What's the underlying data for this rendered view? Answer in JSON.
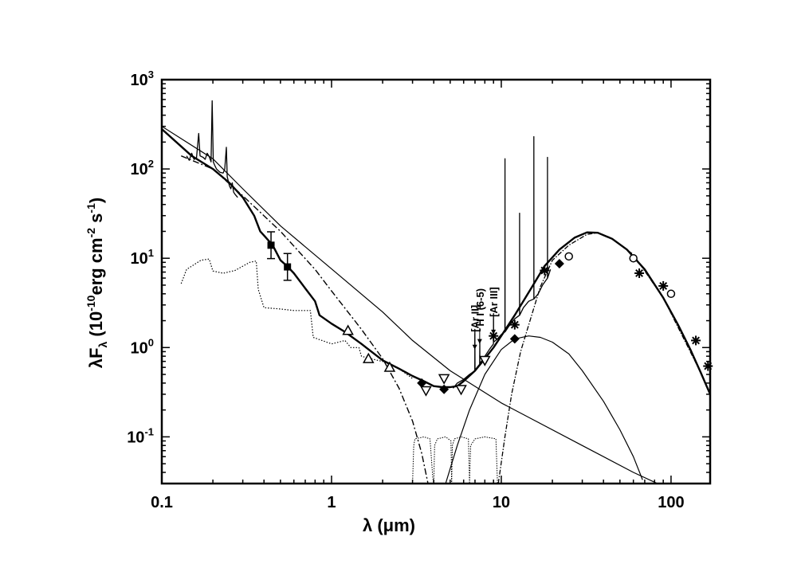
{
  "chart_data": {
    "type": "scatter",
    "xscale": "log",
    "yscale": "log",
    "xlim": [
      0.1,
      170
    ],
    "ylim": [
      0.03,
      1000
    ],
    "x_tick_labels": [
      "0.1",
      "1",
      "10",
      "100"
    ],
    "x_tick_values": [
      0.1,
      1,
      10,
      100
    ],
    "y_tick_values": [
      0.1,
      1,
      10,
      100,
      1000
    ],
    "y_tick_labels": [
      {
        "base": "10",
        "exp": "-1"
      },
      {
        "base": "10",
        "exp": "0"
      },
      {
        "base": "10",
        "exp": "1"
      },
      {
        "base": "10",
        "exp": "2"
      },
      {
        "base": "10",
        "exp": "3"
      }
    ],
    "xlabel": {
      "main": "λ (",
      "mu": "μ",
      "unit": "m)"
    },
    "ylabel": {
      "a": "λF",
      "b": "λ",
      "c": " (10",
      "d": "-10",
      "e": "erg cm",
      "f": "-2",
      "g": " s",
      "h": "-1",
      "i": ")"
    },
    "annotations": [
      {
        "text": "[Ar II]",
        "x": 6.98,
        "y_arrow": 0.95
      },
      {
        "text": "H I (6-5)",
        "x": 7.46,
        "y_arrow": 1.1
      },
      {
        "text": "[Ar III]",
        "x": 8.99,
        "y_arrow": 1.4
      }
    ],
    "series": [
      {
        "name": "squares",
        "marker": "square-filled",
        "points": [
          [
            0.44,
            14
          ],
          [
            0.55,
            8
          ]
        ],
        "yerr": [
          0.15,
          0.15
        ]
      },
      {
        "name": "triangles-up",
        "marker": "triangle-up-open",
        "points": [
          [
            1.25,
            1.55
          ],
          [
            1.65,
            0.75
          ],
          [
            2.2,
            0.6
          ]
        ]
      },
      {
        "name": "triangles-down",
        "marker": "triangle-down-open",
        "points": [
          [
            3.6,
            0.33
          ],
          [
            4.6,
            0.45
          ],
          [
            5.8,
            0.34
          ],
          [
            8.0,
            0.72
          ]
        ]
      },
      {
        "name": "diamonds",
        "marker": "diamond-filled",
        "points": [
          [
            3.4,
            0.4
          ],
          [
            4.6,
            0.34
          ],
          [
            12,
            1.25
          ],
          [
            22,
            8.7
          ]
        ]
      },
      {
        "name": "asterisks",
        "marker": "asterisk",
        "points": [
          [
            9,
            1.35
          ],
          [
            12,
            1.8
          ],
          [
            18,
            7.3
          ],
          [
            65,
            6.8
          ],
          [
            90,
            4.9
          ],
          [
            140,
            1.2
          ],
          [
            165,
            0.62
          ]
        ]
      },
      {
        "name": "circles",
        "marker": "circle-open",
        "points": [
          [
            25,
            10.5
          ],
          [
            60,
            10
          ],
          [
            100,
            4
          ]
        ]
      }
    ],
    "curves": {
      "total_model": [
        [
          0.1,
          280
        ],
        [
          0.15,
          140
        ],
        [
          0.2,
          100
        ],
        [
          0.25,
          70
        ],
        [
          0.3,
          48
        ],
        [
          0.35,
          30
        ],
        [
          0.38,
          20
        ],
        [
          0.4,
          18
        ],
        [
          0.45,
          14
        ],
        [
          0.5,
          9.5
        ],
        [
          0.55,
          8.1
        ],
        [
          0.6,
          6.8
        ],
        [
          0.7,
          4.6
        ],
        [
          0.8,
          3.3
        ],
        [
          0.85,
          2.3
        ],
        [
          1,
          1.85
        ],
        [
          1.2,
          1.5
        ],
        [
          1.5,
          1.1
        ],
        [
          1.6,
          1.0
        ],
        [
          2,
          0.72
        ],
        [
          2.5,
          0.58
        ],
        [
          3,
          0.48
        ],
        [
          3.5,
          0.42
        ],
        [
          4,
          0.37
        ],
        [
          4.5,
          0.36
        ],
        [
          5,
          0.36
        ],
        [
          5.5,
          0.37
        ],
        [
          6,
          0.42
        ],
        [
          7,
          0.55
        ],
        [
          8,
          0.75
        ],
        [
          9,
          1.0
        ],
        [
          10,
          1.35
        ],
        [
          12,
          2.3
        ],
        [
          15,
          4.6
        ],
        [
          18,
          8.2
        ],
        [
          22,
          12.5
        ],
        [
          27,
          17
        ],
        [
          32,
          19.5
        ],
        [
          37,
          19.3
        ],
        [
          45,
          16.5
        ],
        [
          55,
          12.5
        ],
        [
          70,
          7.5
        ],
        [
          90,
          3.6
        ],
        [
          110,
          1.8
        ],
        [
          130,
          0.95
        ],
        [
          150,
          0.52
        ],
        [
          170,
          0.3
        ]
      ],
      "power_law": [
        [
          0.1,
          300
        ],
        [
          0.2,
          130
        ],
        [
          0.3,
          60
        ],
        [
          0.5,
          23
        ],
        [
          1,
          7.6
        ],
        [
          2,
          2.5
        ],
        [
          3,
          1.2
        ],
        [
          5,
          0.55
        ],
        [
          10,
          0.24
        ],
        [
          30,
          0.08
        ],
        [
          60,
          0.04
        ],
        [
          90,
          0.028
        ]
      ],
      "dash_dot_stellar": [
        [
          0.13,
          140
        ],
        [
          0.2,
          100
        ],
        [
          0.3,
          50
        ],
        [
          0.5,
          20
        ],
        [
          0.8,
          7.5
        ],
        [
          1,
          4.3
        ],
        [
          1.5,
          1.6
        ],
        [
          2,
          0.75
        ],
        [
          2.5,
          0.35
        ],
        [
          3,
          0.15
        ],
        [
          3.4,
          0.065
        ],
        [
          3.7,
          0.03
        ]
      ],
      "warm_dust": [
        [
          4.7,
          0.03
        ],
        [
          5.5,
          0.08
        ],
        [
          6.5,
          0.2
        ],
        [
          8,
          0.5
        ],
        [
          10,
          0.95
        ],
        [
          12,
          1.25
        ],
        [
          14.5,
          1.35
        ],
        [
          17,
          1.3
        ],
        [
          20,
          1.15
        ],
        [
          25,
          0.85
        ],
        [
          30,
          0.55
        ],
        [
          40,
          0.25
        ],
        [
          50,
          0.12
        ],
        [
          60,
          0.06
        ],
        [
          68,
          0.033
        ]
      ],
      "cold_dust": [
        [
          9.6,
          0.03
        ],
        [
          10.5,
          0.1
        ],
        [
          11.5,
          0.3
        ],
        [
          13,
          0.9
        ],
        [
          15,
          2.2
        ],
        [
          17,
          4.8
        ],
        [
          20,
          9.5
        ],
        [
          25,
          14
        ],
        [
          32,
          18.5
        ],
        [
          37,
          19.3
        ],
        [
          45,
          16.5
        ],
        [
          60,
          11
        ],
        [
          90,
          3.6
        ],
        [
          150,
          0.52
        ],
        [
          170,
          0.3
        ]
      ],
      "dotted_stellar": [
        [
          0.13,
          5.2
        ],
        [
          0.14,
          7.5
        ],
        [
          0.17,
          9.5
        ],
        [
          0.19,
          9.8
        ],
        [
          0.2,
          7.2
        ],
        [
          0.23,
          6.8
        ],
        [
          0.27,
          7.3
        ],
        [
          0.33,
          9.0
        ],
        [
          0.36,
          9.3
        ],
        [
          0.37,
          4.5
        ],
        [
          0.4,
          2.8
        ],
        [
          0.5,
          2.7
        ],
        [
          0.6,
          2.6
        ],
        [
          0.75,
          2.6
        ],
        [
          0.78,
          1.3
        ],
        [
          1,
          1.1
        ],
        [
          1.2,
          1.2
        ],
        [
          1.3,
          1.0
        ],
        [
          1.45,
          1.0
        ],
        [
          1.5,
          0.8
        ],
        [
          1.7,
          0.75
        ],
        [
          2,
          0.7
        ],
        [
          2.5,
          0.58
        ],
        [
          3,
          0.45
        ]
      ],
      "filter_curves": [
        [
          3.0,
          0.03
        ],
        [
          3.05,
          0.08
        ],
        [
          3.1,
          0.095
        ],
        [
          3.5,
          0.1
        ],
        [
          3.8,
          0.095
        ],
        [
          3.95,
          0.035
        ],
        [
          4.0,
          0.03
        ],
        [
          4.05,
          0.08
        ],
        [
          4.2,
          0.095
        ],
        [
          4.7,
          0.1
        ],
        [
          5.05,
          0.09
        ],
        [
          5.1,
          0.03
        ],
        [
          5.15,
          0.08
        ],
        [
          5.3,
          0.095
        ],
        [
          5.8,
          0.1
        ],
        [
          6.4,
          0.095
        ],
        [
          6.5,
          0.03
        ],
        [
          6.6,
          0.08
        ],
        [
          7.0,
          0.095
        ],
        [
          8.0,
          0.1
        ],
        [
          9.3,
          0.095
        ],
        [
          9.5,
          0.03
        ]
      ],
      "uv_spectrum": [
        [
          0.14,
          140
        ],
        [
          0.145,
          125
        ],
        [
          0.15,
          150
        ],
        [
          0.155,
          128
        ],
        [
          0.16,
          132
        ],
        [
          0.165,
          250
        ],
        [
          0.168,
          140
        ],
        [
          0.175,
          135
        ],
        [
          0.18,
          128
        ],
        [
          0.185,
          150
        ],
        [
          0.19,
          138
        ],
        [
          0.195,
          120
        ],
        [
          0.198,
          580
        ],
        [
          0.201,
          120
        ],
        [
          0.205,
          110
        ],
        [
          0.21,
          100
        ],
        [
          0.22,
          92
        ],
        [
          0.23,
          90
        ],
        [
          0.235,
          100
        ],
        [
          0.24,
          175
        ],
        [
          0.243,
          82
        ],
        [
          0.25,
          65
        ],
        [
          0.255,
          60
        ],
        [
          0.26,
          70
        ],
        [
          0.265,
          55
        ],
        [
          0.27,
          52
        ],
        [
          0.28,
          48
        ]
      ],
      "ir_spectrum": [
        [
          5.2,
          0.35
        ],
        [
          5.5,
          0.4
        ],
        [
          6.0,
          0.44
        ],
        [
          6.5,
          0.5
        ],
        [
          6.98,
          0.55
        ],
        [
          6.99,
          1.6
        ],
        [
          7.0,
          0.56
        ],
        [
          7.2,
          0.6
        ],
        [
          7.46,
          0.65
        ],
        [
          7.47,
          1.2
        ],
        [
          7.48,
          0.66
        ],
        [
          7.7,
          0.72
        ],
        [
          8.0,
          0.8
        ],
        [
          8.5,
          0.95
        ],
        [
          8.99,
          1.1
        ],
        [
          9.0,
          2.4
        ],
        [
          9.01,
          1.15
        ],
        [
          9.5,
          1.25
        ],
        [
          10.0,
          1.4
        ],
        [
          10.51,
          1.5
        ],
        [
          10.52,
          130
        ],
        [
          10.53,
          1.5
        ],
        [
          11.0,
          1.7
        ],
        [
          12.0,
          2.1
        ],
        [
          12.81,
          2.3
        ],
        [
          12.82,
          32
        ],
        [
          12.83,
          2.3
        ],
        [
          13.5,
          2.8
        ],
        [
          14.5,
          3.3
        ],
        [
          15.55,
          3.5
        ],
        [
          15.56,
          230
        ],
        [
          15.57,
          3.5
        ],
        [
          16.5,
          4.0
        ],
        [
          17.5,
          5.0
        ],
        [
          18.71,
          6.0
        ],
        [
          18.72,
          135
        ],
        [
          18.73,
          6.0
        ],
        [
          19.5,
          7.5
        ]
      ]
    }
  }
}
